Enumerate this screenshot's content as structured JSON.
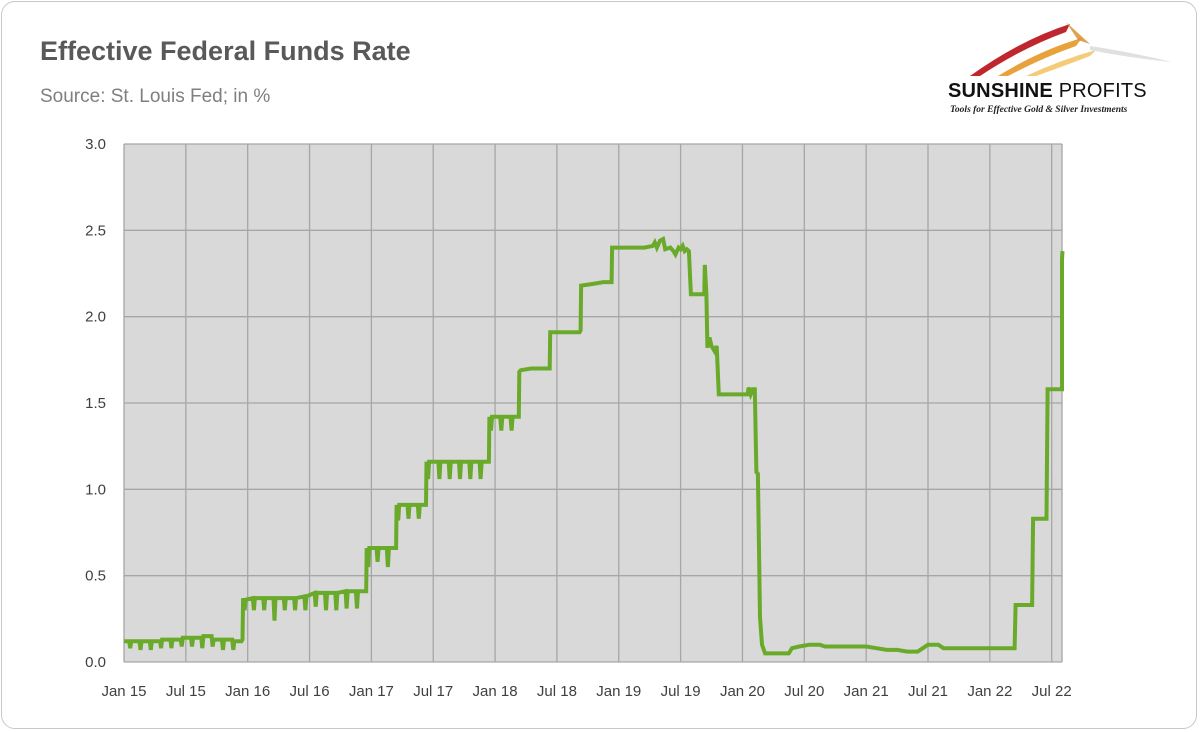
{
  "chart_data": {
    "type": "line",
    "title": "Effective Federal Funds Rate",
    "subtitle": "Source: St. Louis Fed; in %",
    "xlabel": "",
    "ylabel": "",
    "ylim": [
      0,
      3
    ],
    "yticks": [
      "0.0",
      "0.5",
      "1.0",
      "1.5",
      "2.0",
      "2.5",
      "3.0"
    ],
    "ytick_values": [
      0,
      0.5,
      1,
      1.5,
      2,
      2.5,
      3
    ],
    "xlim": [
      0,
      91
    ],
    "xticks": [
      "Jan 15",
      "Jul 15",
      "Jan 16",
      "Jul 16",
      "Jan 17",
      "Jul 17",
      "Jan 18",
      "Jul 18",
      "Jan 19",
      "Jul 19",
      "Jan 20",
      "Jul 20",
      "Jan 21",
      "Jul 21",
      "Jan 22",
      "Jul 22"
    ],
    "xtick_values": [
      0,
      6,
      12,
      18,
      24,
      30,
      36,
      42,
      48,
      54,
      60,
      66,
      72,
      78,
      84,
      90
    ],
    "x_unit": "months since Jan 2015",
    "grid": true,
    "series": [
      {
        "name": "Effective Federal Funds Rate",
        "color": "#6aaa2a",
        "points": [
          [
            0,
            0.12
          ],
          [
            0.5,
            0.12
          ],
          [
            0.6,
            0.08
          ],
          [
            0.7,
            0.12
          ],
          [
            1.5,
            0.12
          ],
          [
            1.6,
            0.07
          ],
          [
            1.7,
            0.12
          ],
          [
            2.5,
            0.12
          ],
          [
            2.6,
            0.07
          ],
          [
            2.7,
            0.12
          ],
          [
            3.5,
            0.12
          ],
          [
            3.6,
            0.08
          ],
          [
            3.7,
            0.13
          ],
          [
            4.5,
            0.13
          ],
          [
            4.6,
            0.08
          ],
          [
            4.7,
            0.13
          ],
          [
            5.5,
            0.13
          ],
          [
            5.6,
            0.09
          ],
          [
            5.7,
            0.14
          ],
          [
            6.5,
            0.14
          ],
          [
            6.6,
            0.09
          ],
          [
            6.7,
            0.14
          ],
          [
            7.5,
            0.14
          ],
          [
            7.6,
            0.08
          ],
          [
            7.7,
            0.15
          ],
          [
            8.5,
            0.15
          ],
          [
            8.6,
            0.09
          ],
          [
            8.7,
            0.13
          ],
          [
            9.5,
            0.13
          ],
          [
            9.6,
            0.07
          ],
          [
            9.7,
            0.13
          ],
          [
            10.5,
            0.13
          ],
          [
            10.6,
            0.07
          ],
          [
            10.7,
            0.12
          ],
          [
            11.4,
            0.12
          ],
          [
            11.5,
            0.13
          ],
          [
            11.55,
            0.37
          ],
          [
            11.7,
            0.3
          ],
          [
            11.8,
            0.36
          ],
          [
            12.5,
            0.37
          ],
          [
            12.6,
            0.3
          ],
          [
            12.7,
            0.37
          ],
          [
            13.5,
            0.37
          ],
          [
            13.6,
            0.3
          ],
          [
            13.7,
            0.37
          ],
          [
            14.5,
            0.37
          ],
          [
            14.6,
            0.24
          ],
          [
            14.7,
            0.37
          ],
          [
            15.5,
            0.37
          ],
          [
            15.6,
            0.3
          ],
          [
            15.7,
            0.37
          ],
          [
            16.5,
            0.37
          ],
          [
            16.6,
            0.3
          ],
          [
            16.7,
            0.37
          ],
          [
            17.5,
            0.38
          ],
          [
            17.6,
            0.3
          ],
          [
            17.7,
            0.38
          ],
          [
            18.5,
            0.4
          ],
          [
            18.6,
            0.32
          ],
          [
            18.7,
            0.4
          ],
          [
            19.5,
            0.4
          ],
          [
            19.6,
            0.3
          ],
          [
            19.7,
            0.4
          ],
          [
            20.5,
            0.4
          ],
          [
            20.6,
            0.3
          ],
          [
            20.7,
            0.4
          ],
          [
            21.5,
            0.41
          ],
          [
            21.6,
            0.31
          ],
          [
            21.7,
            0.41
          ],
          [
            22.5,
            0.41
          ],
          [
            22.6,
            0.31
          ],
          [
            22.7,
            0.41
          ],
          [
            23.4,
            0.41
          ],
          [
            23.5,
            0.41
          ],
          [
            23.55,
            0.66
          ],
          [
            23.7,
            0.55
          ],
          [
            23.8,
            0.66
          ],
          [
            24.5,
            0.66
          ],
          [
            24.6,
            0.58
          ],
          [
            24.7,
            0.66
          ],
          [
            25.5,
            0.66
          ],
          [
            25.6,
            0.55
          ],
          [
            25.7,
            0.66
          ],
          [
            26.3,
            0.66
          ],
          [
            26.4,
            0.66
          ],
          [
            26.45,
            0.91
          ],
          [
            26.6,
            0.82
          ],
          [
            26.7,
            0.91
          ],
          [
            27.5,
            0.91
          ],
          [
            27.6,
            0.83
          ],
          [
            27.7,
            0.91
          ],
          [
            28.5,
            0.91
          ],
          [
            28.6,
            0.83
          ],
          [
            28.7,
            0.91
          ],
          [
            29.2,
            0.91
          ],
          [
            29.3,
            0.91
          ],
          [
            29.35,
            1.16
          ],
          [
            29.5,
            1.06
          ],
          [
            29.6,
            1.16
          ],
          [
            30.5,
            1.16
          ],
          [
            30.6,
            1.06
          ],
          [
            30.7,
            1.16
          ],
          [
            31.5,
            1.16
          ],
          [
            31.6,
            1.06
          ],
          [
            31.7,
            1.16
          ],
          [
            32.5,
            1.16
          ],
          [
            32.6,
            1.06
          ],
          [
            32.7,
            1.16
          ],
          [
            33.5,
            1.16
          ],
          [
            33.6,
            1.06
          ],
          [
            33.7,
            1.16
          ],
          [
            34.5,
            1.16
          ],
          [
            34.6,
            1.06
          ],
          [
            34.7,
            1.16
          ],
          [
            35.3,
            1.16
          ],
          [
            35.4,
            1.16
          ],
          [
            35.45,
            1.42
          ],
          [
            35.6,
            1.34
          ],
          [
            35.7,
            1.42
          ],
          [
            36.5,
            1.42
          ],
          [
            36.6,
            1.34
          ],
          [
            36.7,
            1.42
          ],
          [
            37.5,
            1.42
          ],
          [
            37.6,
            1.34
          ],
          [
            37.7,
            1.42
          ],
          [
            38.2,
            1.42
          ],
          [
            38.3,
            1.42
          ],
          [
            38.35,
            1.68
          ],
          [
            38.5,
            1.69
          ],
          [
            39.5,
            1.7
          ],
          [
            40.5,
            1.7
          ],
          [
            41.2,
            1.7
          ],
          [
            41.3,
            1.7
          ],
          [
            41.35,
            1.91
          ],
          [
            42.5,
            1.91
          ],
          [
            43.5,
            1.91
          ],
          [
            44.2,
            1.91
          ],
          [
            44.3,
            1.92
          ],
          [
            44.35,
            2.18
          ],
          [
            45.5,
            2.19
          ],
          [
            46.5,
            2.2
          ],
          [
            47.3,
            2.2
          ],
          [
            47.35,
            2.4
          ],
          [
            48.5,
            2.4
          ],
          [
            49.5,
            2.4
          ],
          [
            50.5,
            2.4
          ],
          [
            51.3,
            2.41
          ],
          [
            51.5,
            2.43
          ],
          [
            51.7,
            2.4
          ],
          [
            52.0,
            2.44
          ],
          [
            52.3,
            2.45
          ],
          [
            52.5,
            2.39
          ],
          [
            53.0,
            2.4
          ],
          [
            53.3,
            2.38
          ],
          [
            53.5,
            2.36
          ],
          [
            53.8,
            2.4
          ],
          [
            54.0,
            2.39
          ],
          [
            54.2,
            2.41
          ],
          [
            54.4,
            2.38
          ],
          [
            54.6,
            2.39
          ],
          [
            54.8,
            2.38
          ],
          [
            55.0,
            2.13
          ],
          [
            56.3,
            2.13
          ],
          [
            56.35,
            2.3
          ],
          [
            56.5,
            2.13
          ],
          [
            56.6,
            1.82
          ],
          [
            56.8,
            1.88
          ],
          [
            57.0,
            1.83
          ],
          [
            57.3,
            1.8
          ],
          [
            57.5,
            1.83
          ],
          [
            57.7,
            1.55
          ],
          [
            59.5,
            1.55
          ],
          [
            60.5,
            1.55
          ],
          [
            60.6,
            1.59
          ],
          [
            60.8,
            1.55
          ],
          [
            61.0,
            1.58
          ],
          [
            61.2,
            1.58
          ],
          [
            61.35,
            1.1
          ],
          [
            61.5,
            1.09
          ],
          [
            61.7,
            0.26
          ],
          [
            61.9,
            0.1
          ],
          [
            62.2,
            0.05
          ],
          [
            63.0,
            0.05
          ],
          [
            64.0,
            0.05
          ],
          [
            64.5,
            0.05
          ],
          [
            64.8,
            0.08
          ],
          [
            65.5,
            0.09
          ],
          [
            66.5,
            0.1
          ],
          [
            67.5,
            0.1
          ],
          [
            68.0,
            0.09
          ],
          [
            70,
            0.09
          ],
          [
            72,
            0.09
          ],
          [
            73,
            0.08
          ],
          [
            74,
            0.07
          ],
          [
            75,
            0.07
          ],
          [
            76,
            0.06
          ],
          [
            77,
            0.06
          ],
          [
            77.5,
            0.08
          ],
          [
            78,
            0.1
          ],
          [
            79,
            0.1
          ],
          [
            79.5,
            0.08
          ],
          [
            80,
            0.08
          ],
          [
            82,
            0.08
          ],
          [
            84,
            0.08
          ],
          [
            86.4,
            0.08
          ],
          [
            86.5,
            0.33
          ],
          [
            88.1,
            0.33
          ],
          [
            88.2,
            0.83
          ],
          [
            89.5,
            0.83
          ],
          [
            89.6,
            1.58
          ],
          [
            91,
            1.58
          ],
          [
            91,
            2.33
          ],
          [
            91.05,
            2.38
          ]
        ]
      }
    ]
  },
  "logo": {
    "brand_name_bold": "SUNSHINE",
    "brand_name_rest": "PROFITS",
    "tagline": "Tools for Effective Gold & Silver Investments"
  }
}
